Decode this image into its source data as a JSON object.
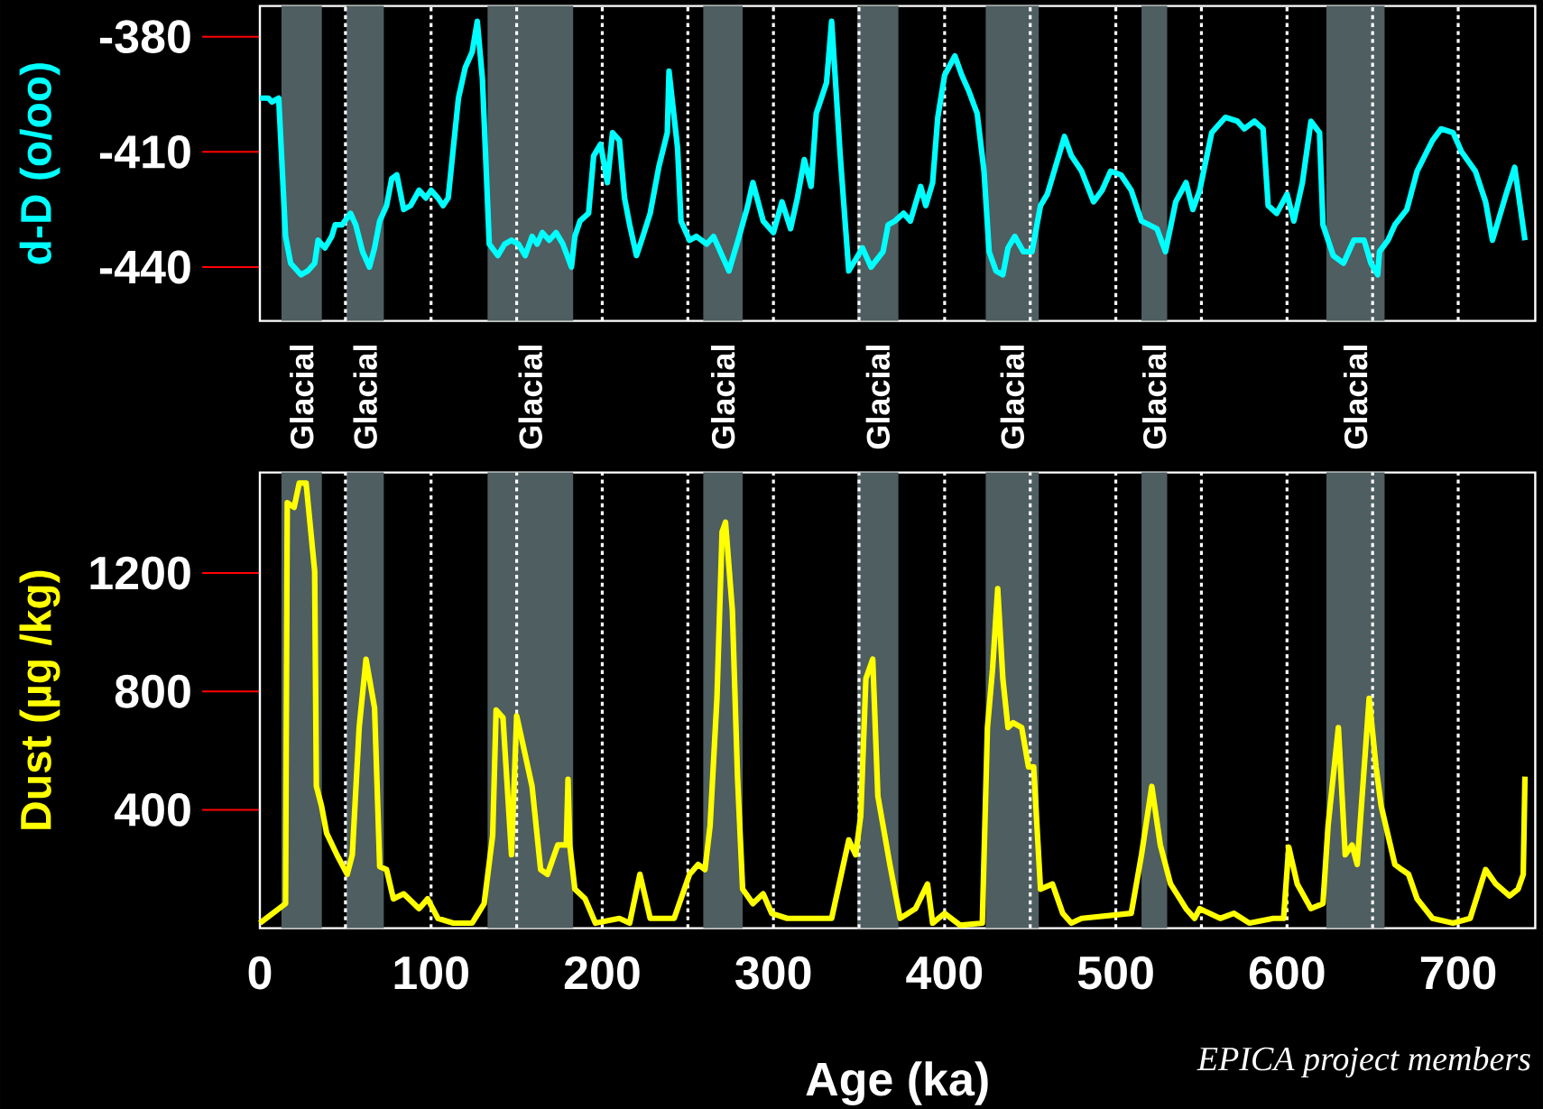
{
  "chart_data": [
    {
      "type": "line",
      "ylabel": "d-D (o/oo)",
      "tick_labels": "y",
      "x": [
        0,
        5,
        7,
        11,
        15,
        18,
        24,
        28,
        32,
        34,
        38,
        42,
        44,
        48,
        53,
        56,
        60,
        64,
        67,
        70,
        74,
        77,
        80,
        84,
        88,
        93,
        97,
        100,
        104,
        107,
        110,
        113,
        116,
        120,
        124,
        127,
        130,
        134,
        139,
        143,
        147,
        151,
        155,
        159,
        162,
        165,
        169,
        173,
        177,
        182,
        184,
        187,
        192,
        195,
        199,
        203,
        206,
        210,
        213,
        216,
        220,
        223,
        228,
        233,
        238,
        239,
        241,
        244,
        246,
        251,
        255,
        261,
        265,
        274,
        280,
        285,
        288,
        294,
        300,
        305,
        310,
        314,
        318,
        322,
        325,
        331,
        334,
        339,
        344,
        348,
        352,
        357,
        364,
        367,
        371,
        376,
        380,
        386,
        389,
        393,
        396,
        400,
        406,
        410,
        414,
        419,
        423,
        426,
        430,
        434,
        437,
        441,
        446,
        451,
        456,
        460,
        464,
        470,
        474,
        480,
        487,
        492,
        497,
        503,
        509,
        515,
        524,
        529,
        535,
        541,
        545,
        549,
        556,
        564,
        571,
        575,
        581,
        586,
        589,
        594,
        600,
        604,
        609,
        614,
        619,
        621,
        627,
        633,
        639,
        645,
        649,
        653,
        654,
        659,
        663,
        670,
        676,
        685,
        690,
        697,
        702,
        710,
        716,
        720,
        728,
        733,
        739
      ],
      "series": [
        {
          "color": "#00ffff",
          "values": [
            -396,
            -396,
            -397,
            -396,
            -432,
            -439,
            -442,
            -441,
            -439,
            -433,
            -435,
            -432,
            -429,
            -429,
            -426,
            -429,
            -436,
            -440,
            -435,
            -428,
            -424,
            -417,
            -416,
            -425,
            -424,
            -420,
            -422,
            -420,
            -422,
            -424,
            -422,
            -409,
            -396,
            -388,
            -384,
            -376,
            -391,
            -434,
            -437,
            -434,
            -433,
            -434,
            -437,
            -432,
            -434,
            -431,
            -433,
            -431,
            -434,
            -440,
            -432,
            -428,
            -426,
            -411,
            -408,
            -418,
            -405,
            -407,
            -422,
            -429,
            -437,
            -433,
            -426,
            -414,
            -405,
            -389,
            -397,
            -409,
            -428,
            -433,
            -432,
            -434,
            -432,
            -441,
            -432,
            -424,
            -418,
            -428,
            -431,
            -423,
            -430,
            -422,
            -412,
            -419,
            -400,
            -392,
            -376,
            -411,
            -441,
            -438,
            -435,
            -440,
            -436,
            -429,
            -428,
            -426,
            -428,
            -419,
            -424,
            -418,
            -401,
            -390,
            -385,
            -390,
            -394,
            -400,
            -415,
            -436,
            -441,
            -442,
            -435,
            -432,
            -436,
            -436,
            -424,
            -421,
            -415,
            -406,
            -411,
            -415,
            -423,
            -420,
            -415,
            -416,
            -420,
            -428,
            -430,
            -436,
            -423,
            -418,
            -425,
            -420,
            -405,
            -401,
            -402,
            -404,
            -402,
            -404,
            -424,
            -426,
            -421,
            -428,
            -418,
            -402,
            -405,
            -429,
            -437,
            -439,
            -433,
            -433,
            -439,
            -442,
            -436,
            -433,
            -429,
            -425,
            -415,
            -407,
            -404,
            -405,
            -410,
            -415,
            -423,
            -433,
            -421,
            -414,
            -433
          ]
        }
      ],
      "xlim": [
        0,
        745
      ],
      "ylim": [
        -454,
        -372
      ],
      "yticks": [
        -380,
        -410,
        -440
      ],
      "bands": [
        {
          "axis": "x",
          "from": 12.6,
          "to": 36.2,
          "label": "Glacial",
          "color": "#4f5e60"
        },
        {
          "axis": "x",
          "from": 50.6,
          "to": 72.4,
          "label": "Glacial",
          "color": "#4f5e60"
        },
        {
          "axis": "x",
          "from": 133,
          "to": 183,
          "label": "Glacial",
          "color": "#4f5e60"
        },
        {
          "axis": "x",
          "from": 259,
          "to": 282,
          "label": "Glacial",
          "color": "#4f5e60"
        },
        {
          "axis": "x",
          "from": 349,
          "to": 373,
          "label": "Glacial",
          "color": "#4f5e60"
        },
        {
          "axis": "x",
          "from": 424,
          "to": 455,
          "label": "Glacial",
          "color": "#4f5e60"
        },
        {
          "axis": "x",
          "from": 515,
          "to": 530,
          "label": "Glacial",
          "color": "#4f5e60"
        },
        {
          "axis": "x",
          "from": 623,
          "to": 657,
          "label": "Glacial",
          "color": "#4f5e60"
        }
      ],
      "ref_lines": [
        {
          "axis": "x",
          "value": 50,
          "color": "#ffffff",
          "line_style": "dotted"
        },
        {
          "axis": "x",
          "value": 100,
          "color": "#ffffff",
          "line_style": "dotted"
        },
        {
          "axis": "x",
          "value": 150,
          "color": "#ffffff",
          "line_style": "dotted"
        },
        {
          "axis": "x",
          "value": 200,
          "color": "#ffffff",
          "line_style": "dotted"
        },
        {
          "axis": "x",
          "value": 250,
          "color": "#ffffff",
          "line_style": "dotted"
        },
        {
          "axis": "x",
          "value": 300,
          "color": "#ffffff",
          "line_style": "dotted"
        },
        {
          "axis": "x",
          "value": 350,
          "color": "#ffffff",
          "line_style": "dotted"
        },
        {
          "axis": "x",
          "value": 400,
          "color": "#ffffff",
          "line_style": "dotted"
        },
        {
          "axis": "x",
          "value": 450,
          "color": "#ffffff",
          "line_style": "dotted"
        },
        {
          "axis": "x",
          "value": 500,
          "color": "#ffffff",
          "line_style": "dotted"
        },
        {
          "axis": "x",
          "value": 550,
          "color": "#ffffff",
          "line_style": "dotted"
        },
        {
          "axis": "x",
          "value": 600,
          "color": "#ffffff",
          "line_style": "dotted"
        },
        {
          "axis": "x",
          "value": 650,
          "color": "#ffffff",
          "line_style": "dotted"
        },
        {
          "axis": "x",
          "value": 700,
          "color": "#ffffff",
          "line_style": "dotted"
        }
      ]
    },
    {
      "type": "line",
      "ylabel": "Dust (µg /kg)",
      "xlabel": "Age (ka)",
      "x": [
        0,
        15,
        16,
        20,
        23,
        27,
        32,
        33,
        36,
        39,
        45,
        48,
        51,
        54,
        58,
        62,
        67,
        70,
        74,
        78,
        84,
        93,
        98,
        104,
        113,
        124,
        131,
        136,
        138,
        142,
        147,
        150,
        154,
        159,
        164,
        168,
        174,
        179,
        180,
        181,
        184,
        190,
        196,
        210,
        216,
        222,
        228,
        242,
        251,
        256,
        260,
        263,
        267,
        270,
        272,
        276,
        279,
        282,
        288,
        294,
        299,
        308,
        334,
        344,
        348,
        351,
        354,
        358,
        361,
        368,
        374,
        383,
        390,
        393,
        400,
        409,
        422,
        425,
        428,
        431,
        434,
        437,
        440,
        445,
        449,
        452,
        456,
        463,
        469,
        474,
        480,
        509,
        515,
        521,
        526,
        532,
        541,
        546,
        549,
        561,
        569,
        578,
        592,
        598,
        601,
        606,
        614,
        621,
        624,
        630,
        634,
        638,
        641,
        648,
        652,
        655,
        663,
        667,
        671,
        676,
        685,
        697,
        707,
        716,
        722,
        730,
        735,
        738,
        739
      ],
      "series": [
        {
          "color": "#ffff00",
          "values": [
            17,
            83,
            1438,
            1422,
            1504,
            1504,
            1207,
            480,
            413,
            321,
            248,
            215,
            182,
            248,
            678,
            909,
            744,
            208,
            198,
            99,
            116,
            66,
            99,
            33,
            17,
            17,
            83,
            314,
            737,
            711,
            248,
            717,
            612,
            479,
            198,
            182,
            281,
            281,
            503,
            281,
            132,
            99,
            17,
            33,
            17,
            182,
            33,
            33,
            182,
            215,
            198,
            347,
            777,
            1339,
            1372,
            1074,
            512,
            132,
            83,
            116,
            50,
            33,
            33,
            298,
            248,
            380,
            843,
            909,
            446,
            215,
            33,
            66,
            149,
            17,
            50,
            10,
            17,
            678,
            876,
            1147,
            843,
            678,
            694,
            678,
            545,
            545,
            132,
            149,
            50,
            17,
            33,
            50,
            248,
            479,
            281,
            149,
            66,
            33,
            66,
            33,
            50,
            17,
            33,
            33,
            274,
            149,
            66,
            83,
            347,
            678,
            248,
            281,
            215,
            777,
            545,
            413,
            215,
            198,
            182,
            99,
            33,
            17,
            33,
            198,
            149,
            109,
            132,
            182,
            512
          ]
        }
      ],
      "xlim": [
        0,
        745
      ],
      "ylim": [
        0,
        1540
      ],
      "yticks": [
        400,
        800,
        1200
      ],
      "xticks": [
        0,
        100,
        200,
        300,
        400,
        500,
        600,
        700
      ],
      "bands": [
        {
          "axis": "x",
          "from": 12.6,
          "to": 36.2,
          "color": "#4f5e60"
        },
        {
          "axis": "x",
          "from": 50.6,
          "to": 72.4,
          "color": "#4f5e60"
        },
        {
          "axis": "x",
          "from": 133,
          "to": 183,
          "color": "#4f5e60"
        },
        {
          "axis": "x",
          "from": 259,
          "to": 282,
          "color": "#4f5e60"
        },
        {
          "axis": "x",
          "from": 349,
          "to": 373,
          "color": "#4f5e60"
        },
        {
          "axis": "x",
          "from": 424,
          "to": 455,
          "color": "#4f5e60"
        },
        {
          "axis": "x",
          "from": 515,
          "to": 530,
          "color": "#4f5e60"
        },
        {
          "axis": "x",
          "from": 623,
          "to": 657,
          "color": "#4f5e60"
        }
      ],
      "ref_lines": [
        {
          "axis": "x",
          "value": 50,
          "color": "#ffffff",
          "line_style": "dotted"
        },
        {
          "axis": "x",
          "value": 100,
          "color": "#ffffff",
          "line_style": "dotted"
        },
        {
          "axis": "x",
          "value": 150,
          "color": "#ffffff",
          "line_style": "dotted"
        },
        {
          "axis": "x",
          "value": 200,
          "color": "#ffffff",
          "line_style": "dotted"
        },
        {
          "axis": "x",
          "value": 250,
          "color": "#ffffff",
          "line_style": "dotted"
        },
        {
          "axis": "x",
          "value": 300,
          "color": "#ffffff",
          "line_style": "dotted"
        },
        {
          "axis": "x",
          "value": 350,
          "color": "#ffffff",
          "line_style": "dotted"
        },
        {
          "axis": "x",
          "value": 400,
          "color": "#ffffff",
          "line_style": "dotted"
        },
        {
          "axis": "x",
          "value": 450,
          "color": "#ffffff",
          "line_style": "dotted"
        },
        {
          "axis": "x",
          "value": 500,
          "color": "#ffffff",
          "line_style": "dotted"
        },
        {
          "axis": "x",
          "value": 550,
          "color": "#ffffff",
          "line_style": "dotted"
        },
        {
          "axis": "x",
          "value": 600,
          "color": "#ffffff",
          "line_style": "dotted"
        },
        {
          "axis": "x",
          "value": 650,
          "color": "#ffffff",
          "line_style": "dotted"
        },
        {
          "axis": "x",
          "value": 700,
          "color": "#ffffff",
          "line_style": "dotted"
        }
      ],
      "annotations": [
        "EPICA project members"
      ]
    }
  ]
}
